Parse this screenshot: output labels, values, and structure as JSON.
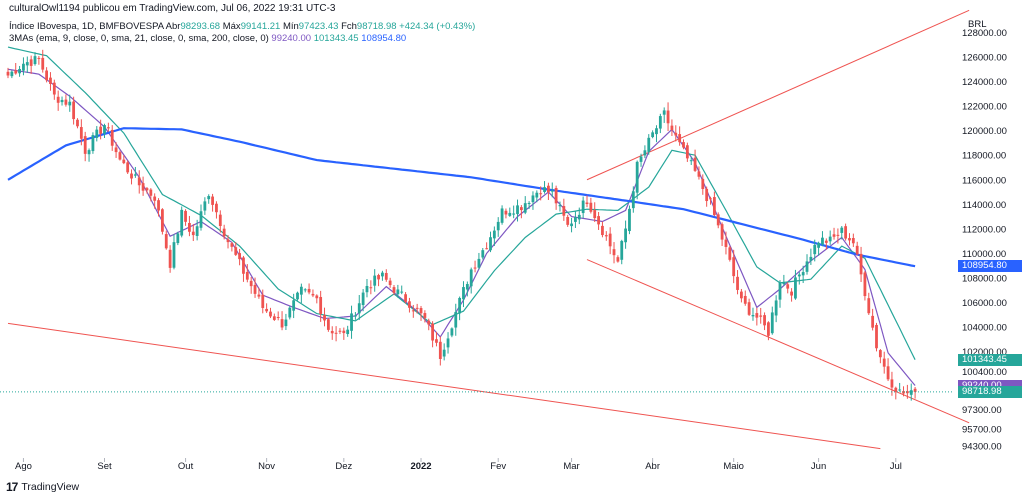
{
  "header": "culturalOwl1194 publicou em TradingView.com, Jul 06, 2022 19:31 UTC-3",
  "symbol_line": {
    "name": "Índice IBovespa, 1D, BMFBOVESPA",
    "open_label": "Abr",
    "open": "98293.68",
    "high_label": "Máx",
    "high": "99141.21",
    "low_label": "Mín",
    "low": "97423.43",
    "close_label": "Fch",
    "close": "98718.98",
    "change": "+424.34 (+0.43%)"
  },
  "indicator_line": {
    "name": "3MAs (ema, 9, close, 0, sma, 21, close, 0, sma, 200, close, 0)",
    "ema9": "99240.00",
    "sma21": "101343.45",
    "sma200": "108954.80"
  },
  "currency": "BRL",
  "price_tags": [
    {
      "label": "108954.80",
      "color": "#2962ff",
      "value": 108954.8
    },
    {
      "label": "101343.45",
      "color": "#26a69a",
      "value": 101343.45
    },
    {
      "label": "99240.00",
      "color": "#7e57c2",
      "value": 99240.0
    },
    {
      "label": "98718.98",
      "color": "#26a69a",
      "value": 98718.98
    }
  ],
  "footer": "TradingView",
  "chart_data": {
    "type": "line",
    "title": "Índice IBovespa, 1D, BMFBOVESPA",
    "y_ticks": [
      128000,
      126000,
      124000,
      122000,
      120000,
      118000,
      116000,
      114000,
      112000,
      110000,
      108000,
      106000,
      104000,
      102000,
      100400,
      97300,
      95700,
      94300
    ],
    "y_tick_labels": [
      "128000.00",
      "126000.00",
      "124000.00",
      "122000.00",
      "120000.00",
      "118000.00",
      "116000.00",
      "114000.00",
      "112000.00",
      "110000.00",
      "108000.00",
      "106000.00",
      "104000.00",
      "102000.00",
      "100400.00",
      "97300.00",
      "95700.00",
      "94300.00"
    ],
    "ylim": [
      93500,
      129500
    ],
    "x_ticks": [
      "Ago",
      "Set",
      "Out",
      "Nov",
      "Dez",
      "2022",
      "Fev",
      "Mar",
      "Abr",
      "Maio",
      "Jun",
      "Jul"
    ],
    "x_tick_index": [
      4,
      25,
      46,
      67,
      87,
      107,
      127,
      146,
      167,
      188,
      210,
      230
    ],
    "n_bars": 236,
    "price_anchors": [
      [
        0,
        124500
      ],
      [
        4,
        125500
      ],
      [
        8,
        125800
      ],
      [
        12,
        122800
      ],
      [
        16,
        122200
      ],
      [
        20,
        118400
      ],
      [
        25,
        120500
      ],
      [
        29,
        117600
      ],
      [
        34,
        115600
      ],
      [
        38,
        114600
      ],
      [
        42,
        109200
      ],
      [
        45,
        113200
      ],
      [
        48,
        111400
      ],
      [
        52,
        115000
      ],
      [
        57,
        111000
      ],
      [
        61,
        108500
      ],
      [
        66,
        105600
      ],
      [
        71,
        104300
      ],
      [
        76,
        106900
      ],
      [
        80,
        106300
      ],
      [
        83,
        103900
      ],
      [
        87,
        103300
      ],
      [
        90,
        105400
      ],
      [
        93,
        107400
      ],
      [
        97,
        108100
      ],
      [
        101,
        106800
      ],
      [
        104,
        106000
      ],
      [
        108,
        104600
      ],
      [
        112,
        101700
      ],
      [
        116,
        105200
      ],
      [
        120,
        108700
      ],
      [
        124,
        110800
      ],
      [
        128,
        113400
      ],
      [
        133,
        113900
      ],
      [
        138,
        115300
      ],
      [
        141,
        114900
      ],
      [
        145,
        112200
      ],
      [
        150,
        114400
      ],
      [
        155,
        111300
      ],
      [
        158,
        109300
      ],
      [
        160,
        112000
      ],
      [
        163,
        117100
      ],
      [
        167,
        119700
      ],
      [
        170,
        121300
      ],
      [
        174,
        118800
      ],
      [
        178,
        116600
      ],
      [
        182,
        114000
      ],
      [
        186,
        110300
      ],
      [
        190,
        106000
      ],
      [
        194,
        104800
      ],
      [
        197,
        103600
      ],
      [
        200,
        107900
      ],
      [
        203,
        107000
      ],
      [
        206,
        108900
      ],
      [
        210,
        111100
      ],
      [
        213,
        111000
      ],
      [
        216,
        111800
      ],
      [
        219,
        110900
      ],
      [
        222,
        106900
      ],
      [
        225,
        102500
      ],
      [
        228,
        99900
      ],
      [
        231,
        98700
      ],
      [
        234,
        98500
      ],
      [
        235,
        98719
      ]
    ],
    "series": [
      {
        "key": "ema9",
        "color": "#7e57c2",
        "anchors": [
          [
            0,
            125000
          ],
          [
            8,
            124600
          ],
          [
            16,
            122800
          ],
          [
            25,
            120300
          ],
          [
            34,
            116200
          ],
          [
            42,
            111400
          ],
          [
            50,
            112600
          ],
          [
            58,
            110900
          ],
          [
            66,
            106600
          ],
          [
            74,
            105600
          ],
          [
            82,
            104700
          ],
          [
            90,
            104900
          ],
          [
            98,
            107300
          ],
          [
            106,
            105300
          ],
          [
            112,
            103200
          ],
          [
            118,
            106200
          ],
          [
            124,
            110000
          ],
          [
            132,
            113000
          ],
          [
            140,
            115000
          ],
          [
            146,
            113000
          ],
          [
            154,
            112600
          ],
          [
            160,
            113500
          ],
          [
            166,
            118300
          ],
          [
            172,
            120100
          ],
          [
            178,
            117400
          ],
          [
            186,
            111400
          ],
          [
            194,
            105600
          ],
          [
            200,
            107100
          ],
          [
            208,
            109400
          ],
          [
            216,
            111300
          ],
          [
            222,
            108700
          ],
          [
            228,
            101900
          ],
          [
            235,
            99240
          ]
        ]
      },
      {
        "key": "sma21",
        "color": "#26a69a",
        "anchors": [
          [
            0,
            126800
          ],
          [
            10,
            126100
          ],
          [
            20,
            123100
          ],
          [
            30,
            119800
          ],
          [
            40,
            114800
          ],
          [
            50,
            113100
          ],
          [
            60,
            110600
          ],
          [
            70,
            107100
          ],
          [
            80,
            105100
          ],
          [
            90,
            104500
          ],
          [
            100,
            106700
          ],
          [
            110,
            104200
          ],
          [
            118,
            105300
          ],
          [
            126,
            108600
          ],
          [
            134,
            111300
          ],
          [
            142,
            113200
          ],
          [
            150,
            113600
          ],
          [
            158,
            113500
          ],
          [
            166,
            115400
          ],
          [
            172,
            118400
          ],
          [
            178,
            118000
          ],
          [
            186,
            113500
          ],
          [
            194,
            108900
          ],
          [
            200,
            107600
          ],
          [
            208,
            107900
          ],
          [
            216,
            110600
          ],
          [
            222,
            109600
          ],
          [
            228,
            105800
          ],
          [
            235,
            101343
          ]
        ]
      },
      {
        "key": "sma200",
        "color": "#2962ff",
        "anchors": [
          [
            0,
            116000
          ],
          [
            15,
            118800
          ],
          [
            30,
            120200
          ],
          [
            45,
            120100
          ],
          [
            60,
            119100
          ],
          [
            80,
            117600
          ],
          [
            100,
            116900
          ],
          [
            120,
            116200
          ],
          [
            140,
            115200
          ],
          [
            160,
            114300
          ],
          [
            175,
            113600
          ],
          [
            190,
            112400
          ],
          [
            205,
            111200
          ],
          [
            220,
            109900
          ],
          [
            235,
            108955
          ]
        ]
      }
    ],
    "trendlines": [
      {
        "name": "channel-upper",
        "points": [
          [
            150,
            116000
          ],
          [
            249,
            129800
          ]
        ]
      },
      {
        "name": "channel-lower",
        "points": [
          [
            150,
            109500
          ],
          [
            249,
            96200
          ]
        ]
      },
      {
        "name": "long-support",
        "points": [
          [
            0,
            104300
          ],
          [
            226,
            94100
          ]
        ]
      }
    ]
  }
}
